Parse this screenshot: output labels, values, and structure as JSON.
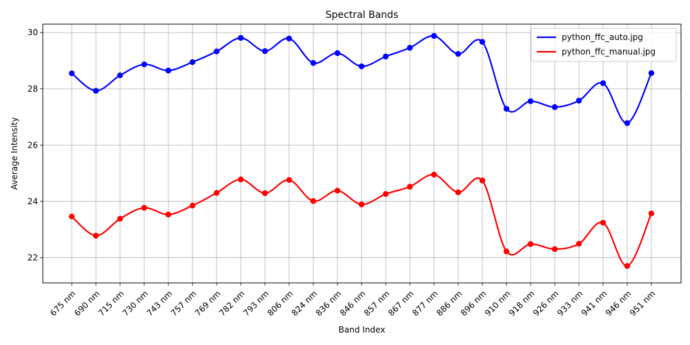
{
  "chart_data": {
    "type": "line",
    "title": "Spectral Bands",
    "xlabel": "Band Index",
    "ylabel": "Average Intensity",
    "categories": [
      "675 nm",
      "690 nm",
      "715 nm",
      "730 nm",
      "743 nm",
      "757 nm",
      "769 nm",
      "782 nm",
      "793 nm",
      "806 nm",
      "824 nm",
      "836 nm",
      "846 nm",
      "857 nm",
      "867 nm",
      "877 nm",
      "886 nm",
      "896 nm",
      "910 nm",
      "918 nm",
      "926 nm",
      "933 nm",
      "941 nm",
      "946 nm",
      "951 nm"
    ],
    "ylim": [
      21.1,
      30.3
    ],
    "yticks": [
      22,
      24,
      26,
      28,
      30
    ],
    "grid": true,
    "legend_position": "top-right",
    "series": [
      {
        "name": "python_ffc_auto.jpg",
        "color": "#0000ff",
        "values": [
          28.55,
          27.93,
          28.48,
          28.87,
          28.65,
          28.95,
          29.33,
          29.81,
          29.34,
          29.79,
          28.92,
          29.27,
          28.8,
          29.15,
          29.46,
          29.88,
          29.24,
          29.67,
          27.29,
          27.56,
          27.35,
          27.58,
          28.2,
          26.78,
          28.56
        ]
      },
      {
        "name": "python_ffc_manual.jpg",
        "color": "#ff0000",
        "values": [
          23.46,
          22.78,
          23.38,
          23.77,
          23.53,
          23.85,
          24.3,
          24.78,
          24.29,
          24.76,
          24.01,
          24.38,
          23.89,
          24.26,
          24.52,
          24.95,
          24.32,
          24.74,
          22.22,
          22.48,
          22.3,
          22.49,
          23.24,
          21.7,
          23.57
        ]
      }
    ]
  }
}
